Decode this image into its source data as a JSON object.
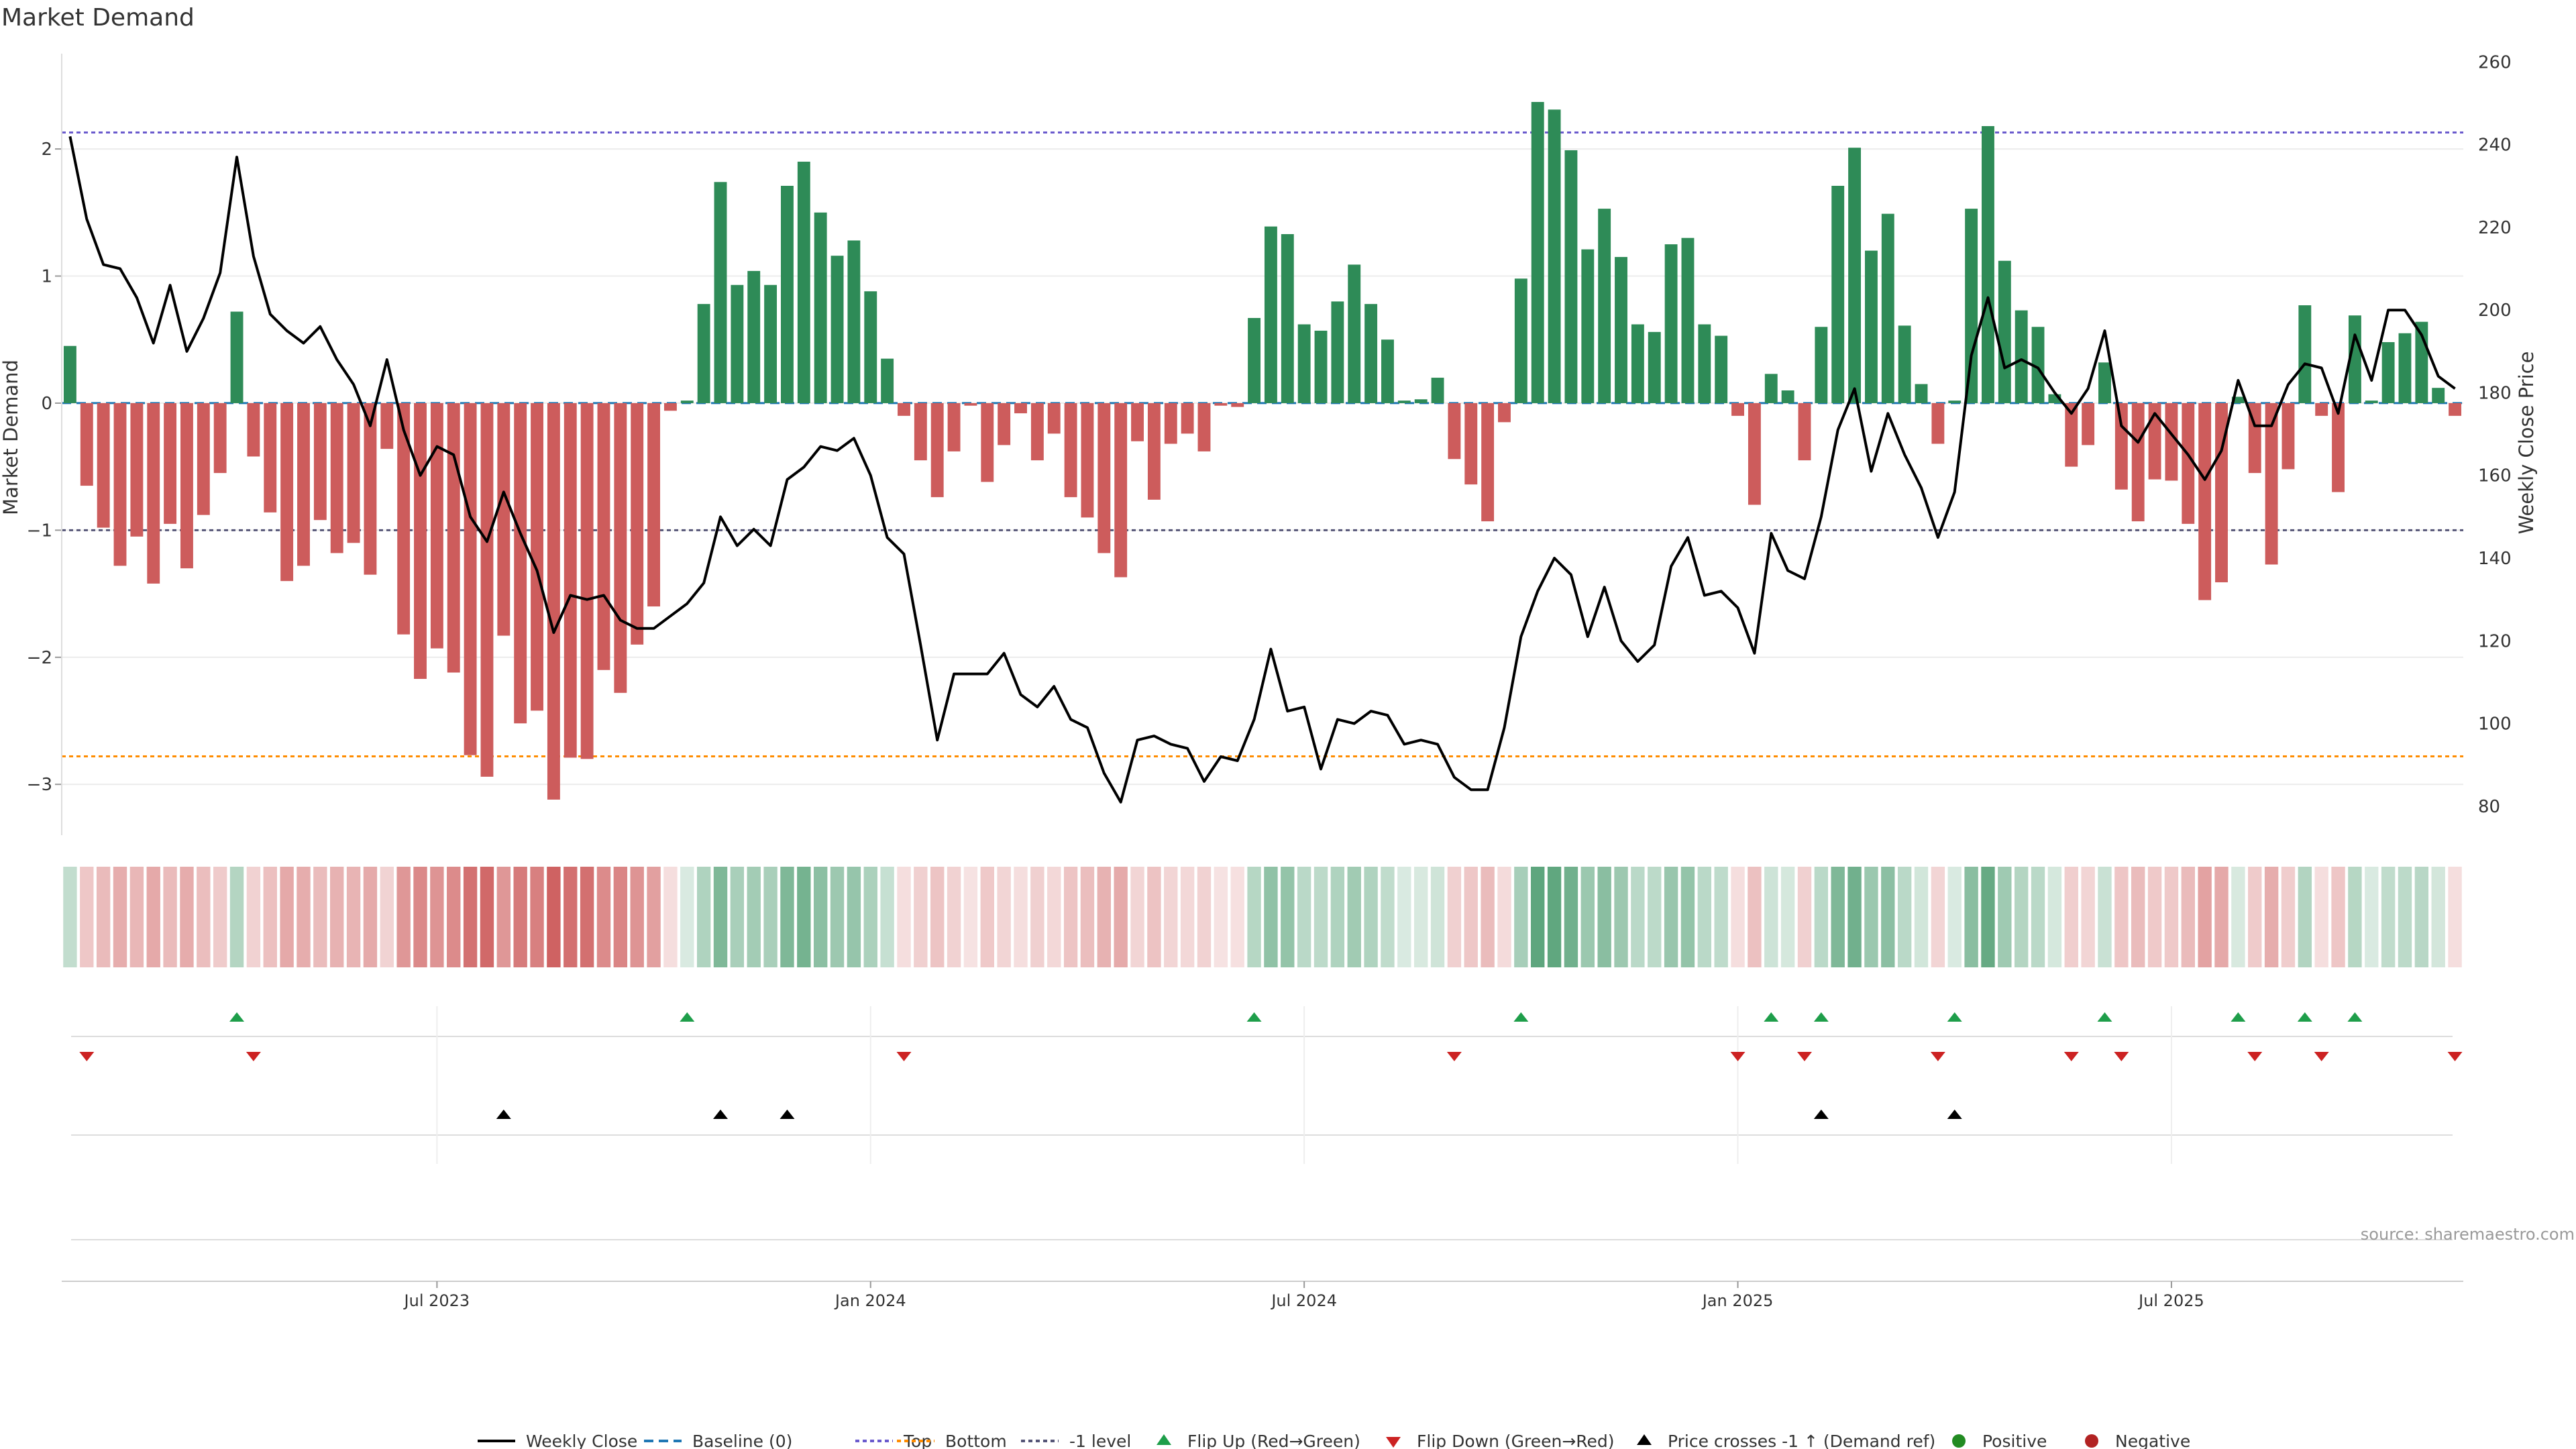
{
  "title": "Market Demand",
  "source": "source: sharemaestro.com",
  "colors": {
    "positive": "#2e8b57",
    "negative": "#cd5c5c",
    "price": "#000000",
    "baseline": "#1f77b4",
    "top": "#6a5acd",
    "bottom": "#ff8c00",
    "minus1": "#555577",
    "flip_up": "#1e9e4a",
    "flip_down": "#cc2222",
    "cross": "#000000",
    "pos_dot": "#228b22",
    "neg_dot": "#b22222"
  },
  "chart_data": {
    "type": "bar",
    "title": "Market Demand",
    "ylabel": "Market Demand",
    "y2label": "Weekly Close Price",
    "ylim": [
      -3.4,
      2.75
    ],
    "y_ticks": [
      2,
      1,
      0,
      -1,
      -2,
      -3
    ],
    "y_tick_labels": [
      "2",
      "1",
      "0",
      "−1",
      "−2",
      "−3"
    ],
    "y2lim": [
      73,
      262
    ],
    "y2_ticks": [
      260,
      240,
      220,
      200,
      180,
      160,
      140,
      120,
      100,
      80
    ],
    "x_tick_labels": [
      "Jul 2023",
      "Jan 2024",
      "Jul 2024",
      "Jan 2025",
      "Jul 2025"
    ],
    "x_tick_weeks": [
      22,
      48,
      74,
      100,
      126
    ],
    "reference_lines": {
      "top": 2.13,
      "bottom": -2.78,
      "minus1": -1.0,
      "baseline": 0
    },
    "demand": [
      0.45,
      -0.65,
      -0.98,
      -1.28,
      -1.05,
      -1.42,
      -0.95,
      -1.3,
      -0.88,
      -0.55,
      0.72,
      -0.42,
      -0.86,
      -1.4,
      -1.28,
      -0.92,
      -1.18,
      -1.1,
      -1.35,
      -0.36,
      -1.82,
      -2.17,
      -1.93,
      -2.12,
      -2.77,
      -2.94,
      -1.83,
      -2.52,
      -2.42,
      -3.12,
      -2.79,
      -2.8,
      -2.1,
      -2.28,
      -1.9,
      -1.6,
      -0.06,
      0.02,
      0.78,
      1.74,
      0.93,
      1.04,
      0.93,
      1.71,
      1.9,
      1.5,
      1.16,
      1.28,
      0.88,
      0.35,
      -0.1,
      -0.45,
      -0.74,
      -0.38,
      -0.02,
      -0.62,
      -0.33,
      -0.08,
      -0.45,
      -0.24,
      -0.74,
      -0.9,
      -1.18,
      -1.37,
      -0.3,
      -0.76,
      -0.32,
      -0.24,
      -0.38,
      -0.02,
      -0.03,
      0.67,
      1.39,
      1.33,
      0.62,
      0.57,
      0.8,
      1.09,
      0.78,
      0.5,
      0.02,
      0.03,
      0.2,
      -0.44,
      -0.64,
      -0.93,
      -0.15,
      0.98,
      2.37,
      2.31,
      1.99,
      1.21,
      1.53,
      1.15,
      0.62,
      0.56,
      1.25,
      1.3,
      0.62,
      0.53,
      -0.1,
      -0.8,
      0.23,
      0.1,
      -0.45,
      0.6,
      1.71,
      2.01,
      1.2,
      1.49,
      0.61,
      0.15,
      -0.32,
      0.02,
      1.53,
      2.18,
      1.12,
      0.73,
      0.6,
      0.07,
      -0.5,
      -0.33,
      0.32,
      -0.68,
      -0.93,
      -0.6,
      -0.61,
      -0.95,
      -1.55,
      -1.41,
      0.05,
      -0.55,
      -1.27,
      -0.52,
      0.77,
      -0.1,
      -0.7,
      0.69,
      0.02,
      0.48,
      0.55,
      0.64,
      0.12,
      -0.1
    ],
    "close": [
      242,
      222,
      211,
      210,
      203,
      192,
      206,
      190,
      198,
      209,
      237,
      213,
      199,
      195,
      192,
      196,
      188,
      182,
      172,
      188,
      171,
      160,
      167,
      165,
      150,
      144,
      156,
      146,
      137,
      122,
      131,
      130,
      131,
      125,
      123,
      123,
      126,
      129,
      134,
      150,
      143,
      147,
      143,
      159,
      162,
      167,
      166,
      169,
      160,
      145,
      141,
      119,
      96,
      112,
      112,
      112,
      117,
      107,
      104,
      109,
      101,
      99,
      88,
      81,
      96,
      97,
      95,
      94,
      86,
      92,
      91,
      101,
      118,
      103,
      104,
      89,
      101,
      100,
      103,
      102,
      95,
      96,
      95,
      87,
      84,
      84,
      99,
      121,
      132,
      140,
      136,
      121,
      133,
      120,
      115,
      119,
      138,
      145,
      131,
      132,
      128,
      117,
      146,
      137,
      135,
      150,
      171,
      181,
      161,
      175,
      165,
      157,
      145,
      156,
      189,
      203,
      186,
      188,
      186,
      180,
      175,
      181,
      195,
      172,
      168,
      175,
      170,
      165,
      159,
      166,
      183,
      172,
      172,
      182,
      187,
      186,
      175,
      194,
      183,
      200,
      200,
      194,
      184,
      181
    ],
    "flip_up_weeks": [
      10,
      37,
      71,
      87,
      102,
      105,
      113,
      122,
      130,
      134,
      137
    ],
    "flip_down_weeks": [
      1,
      11,
      50,
      83,
      100,
      104,
      112,
      120,
      123,
      131,
      135,
      143
    ],
    "price_cross_weeks": [
      26,
      39,
      43,
      105,
      113
    ],
    "legend": [
      "Weekly Close",
      "Baseline (0)",
      "Top",
      "Bottom",
      "-1 level",
      "Flip Up (Red→Green)",
      "Flip Down (Green→Red)",
      "Price crosses -1 ↑ (Demand ref)",
      "Positive",
      "Negative"
    ]
  }
}
